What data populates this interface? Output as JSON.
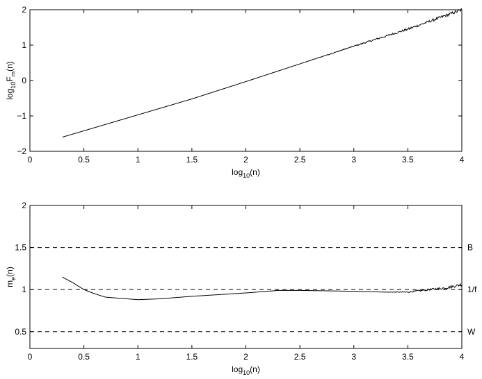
{
  "chart_data": [
    {
      "type": "line",
      "xlabel": {
        "main": "log",
        "sub": "10",
        "tail": "(n)"
      },
      "ylabel": {
        "main": "log",
        "sub": "10",
        "mid": "F",
        "sub2": "m",
        "tail": "(n)"
      },
      "xlim": [
        0,
        4
      ],
      "ylim": [
        -2,
        2
      ],
      "xticks": [
        0,
        0.5,
        1,
        1.5,
        2,
        2.5,
        3,
        3.5,
        4
      ],
      "xtick_labels": [
        "0",
        "0.5",
        "1",
        "1.5",
        "2",
        "2.5",
        "3",
        "3.5",
        "4"
      ],
      "yticks": [
        -2,
        -1,
        0,
        1,
        2
      ],
      "ytick_labels": [
        "−2",
        "−1",
        "0",
        "1",
        "2"
      ],
      "series": [
        {
          "x": [
            0.3,
            0.5,
            1.0,
            1.5,
            2.0,
            2.5,
            3.0,
            3.5,
            4.0
          ],
          "y": [
            -1.6,
            -1.42,
            -0.97,
            -0.52,
            -0.03,
            0.47,
            0.97,
            1.45,
            2.0
          ]
        }
      ],
      "noise_from_x": 2.4,
      "grid": false
    },
    {
      "type": "line",
      "xlabel": {
        "main": "log",
        "sub": "10",
        "tail": "(n)"
      },
      "ylabel": {
        "main": "m",
        "sub": "e",
        "tail": "(n)"
      },
      "xlim": [
        0,
        4
      ],
      "ylim": [
        0.3,
        2
      ],
      "xticks": [
        0,
        0.5,
        1,
        1.5,
        2,
        2.5,
        3,
        3.5,
        4
      ],
      "xtick_labels": [
        "0",
        "0.5",
        "1",
        "1.5",
        "2",
        "2.5",
        "3",
        "3.5",
        "4"
      ],
      "yticks": [
        0.5,
        1,
        1.5,
        2
      ],
      "ytick_labels": [
        "0.5",
        "1",
        "1.5",
        "2"
      ],
      "series": [
        {
          "x": [
            0.3,
            0.4,
            0.5,
            0.6,
            0.7,
            0.8,
            1.0,
            1.2,
            1.5,
            2.0,
            2.3,
            2.5,
            3.0,
            3.3,
            3.5,
            3.7,
            3.85,
            4.0
          ],
          "y": [
            1.15,
            1.08,
            1.0,
            0.95,
            0.91,
            0.9,
            0.88,
            0.89,
            0.92,
            0.96,
            0.99,
            0.99,
            0.98,
            0.97,
            0.97,
            1.0,
            1.02,
            1.06
          ]
        }
      ],
      "noise_from_x": 3.2,
      "reference_lines": [
        {
          "y": 1.5,
          "label": "B"
        },
        {
          "y": 1.0,
          "label": "1/f"
        },
        {
          "y": 0.5,
          "label": "W"
        }
      ],
      "grid": false
    }
  ]
}
